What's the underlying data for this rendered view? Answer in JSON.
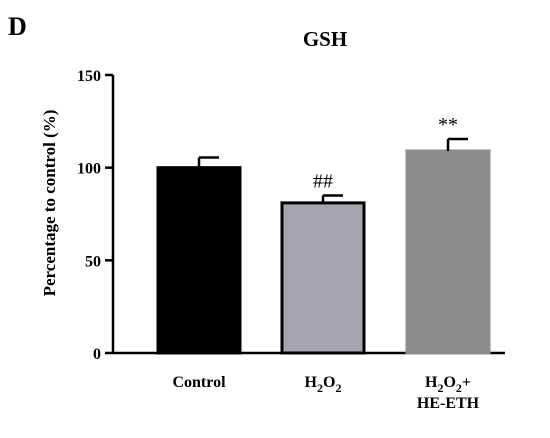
{
  "panel_letter": "D",
  "chart_data": {
    "type": "bar",
    "title": "GSH",
    "xlabel": "",
    "ylabel": "Percentage to control (%)",
    "ylim": [
      0,
      150
    ],
    "yticks": [
      0,
      50,
      100,
      150
    ],
    "categories": [
      "Control",
      "H2O2",
      "H2O2+ HE-ETH"
    ],
    "category_lines": [
      [
        {
          "t": "Control"
        }
      ],
      [
        {
          "t": "H"
        },
        {
          "t": "2",
          "sub": true
        },
        {
          "t": "O"
        },
        {
          "t": "2",
          "sub": true
        }
      ],
      [
        [
          {
            "t": "H"
          },
          {
            "t": "2",
            "sub": true
          },
          {
            "t": "O"
          },
          {
            "t": "2",
            "sub": true
          },
          {
            "t": "+"
          }
        ],
        [
          {
            "t": "HE-ETH"
          }
        ]
      ]
    ],
    "values": [
      100,
      81,
      109
    ],
    "errors": [
      5.5,
      4,
      6.5
    ],
    "significance": [
      "",
      "##",
      "**"
    ],
    "bar_colors": [
      "#000000",
      "#a6a4ad",
      "#8c8c8c"
    ],
    "bar_edge_colors": [
      "#000000",
      "#000000",
      "#8c8c8c"
    ],
    "grid": false,
    "legend": "none"
  }
}
